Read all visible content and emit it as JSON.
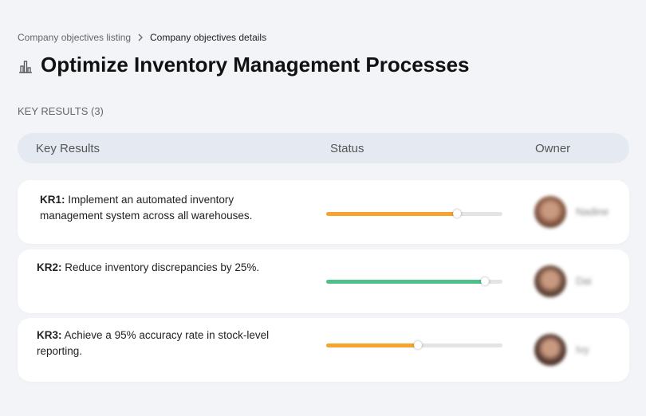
{
  "breadcrumb": [
    "Company objectives listing",
    "Company objectives details"
  ],
  "title": "Optimize Inventory Management Processes",
  "section_label": "KEY RESULTS (3)",
  "table": {
    "columns": [
      "Key Results",
      "Status",
      "Owner"
    ],
    "rows": [
      {
        "id": "KR1:",
        "text": "Implement an automated inventory management system across all warehouses.",
        "progress": 74,
        "color": "#f5a52f",
        "owner": "Nadine"
      },
      {
        "id": "KR2:",
        "text": "Reduce inventory discrepancies by 25%.",
        "progress": 90,
        "color": "#4cc18a",
        "owner": "Dai"
      },
      {
        "id": "KR3:",
        "text": "Achieve a 95% accuracy rate in stock-level reporting.",
        "progress": 52,
        "color": "#f5a52f",
        "owner": "Ivy"
      }
    ]
  }
}
